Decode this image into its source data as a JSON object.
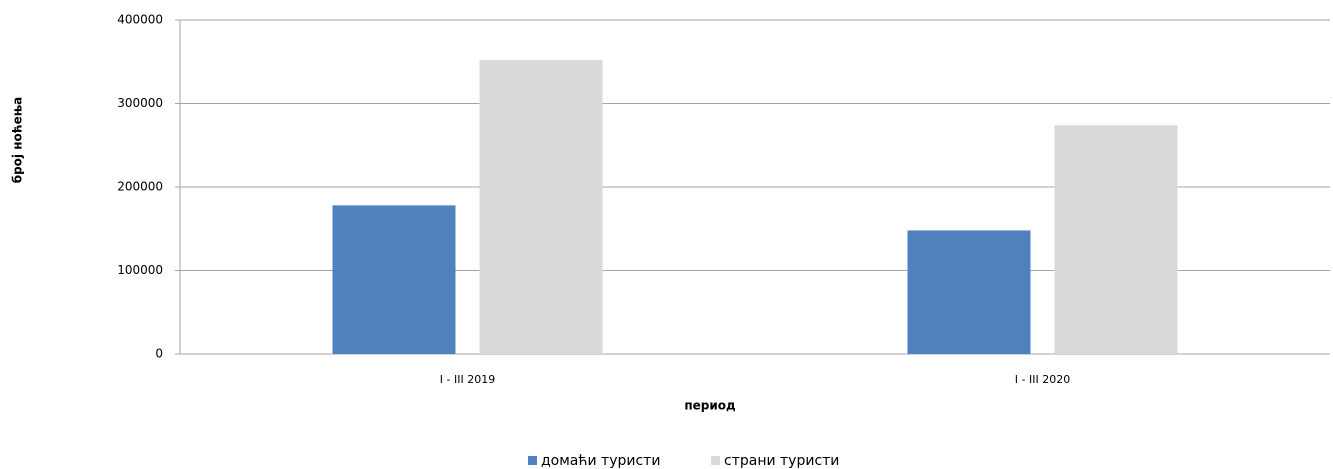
{
  "chart_data": {
    "type": "bar",
    "categories": [
      "I - III 2019",
      "I - III 2020"
    ],
    "series": [
      {
        "name": "домаћи туристи",
        "color": "#4f81bd",
        "values": [
          178000,
          148000
        ]
      },
      {
        "name": "страни туристи",
        "color": "#d9d9d9",
        "values": [
          352000,
          274000
        ]
      }
    ],
    "x_label": "период",
    "y_label": "број ноћења",
    "ylim": [
      0,
      400000
    ],
    "yticks": [
      0,
      100000,
      200000,
      300000,
      400000
    ],
    "grid": true,
    "legend": "bottom"
  }
}
